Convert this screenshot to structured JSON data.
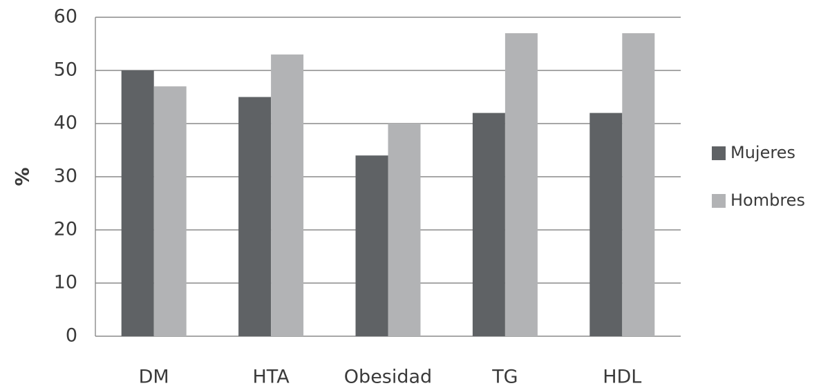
{
  "chart_data": {
    "type": "bar",
    "categories": [
      "DM",
      "HTA",
      "Obesidad",
      "TG",
      "HDL"
    ],
    "series": [
      {
        "name": "Mujeres",
        "values": [
          50,
          45,
          34,
          42,
          42
        ],
        "color": "#5f6265"
      },
      {
        "name": "Hombres",
        "values": [
          47,
          53,
          40,
          57,
          57
        ],
        "color": "#b2b3b5"
      }
    ],
    "ylabel": "%",
    "ylim": [
      0,
      60
    ],
    "yticks": [
      0,
      10,
      20,
      30,
      40,
      50,
      60
    ],
    "grid": true,
    "grid_color": "#8a8a8a",
    "legend_position": "right"
  }
}
